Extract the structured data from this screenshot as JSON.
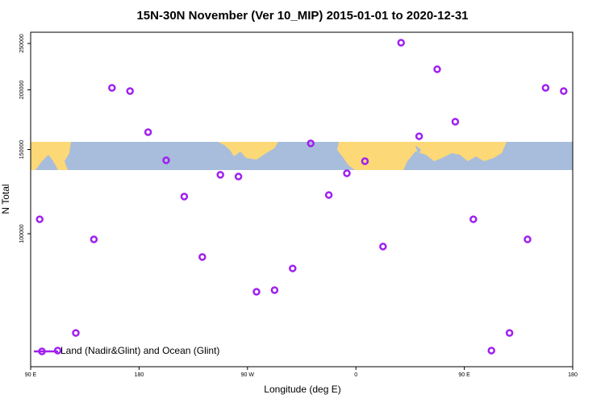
{
  "chart_data": {
    "type": "scatter",
    "title": "15N-30N November (Ver 10_MIP)   2015-01-01 to 2020-12-31",
    "x_label": "Longitude (deg E)",
    "y_label": "N Total",
    "xlim": [
      90,
      540
    ],
    "xticks": [
      {
        "value": 90,
        "label": "90 E"
      },
      {
        "value": 180,
        "label": "180"
      },
      {
        "value": 270,
        "label": "90 W"
      },
      {
        "value": 360,
        "label": "0"
      },
      {
        "value": 450,
        "label": "90 E"
      },
      {
        "value": 540,
        "label": "180"
      }
    ],
    "ylim": [
      52700,
      263900
    ],
    "y_scale": "log",
    "yticks": [
      100000,
      150000,
      200000,
      250000
    ],
    "legend_position": "bottom-left",
    "series": [
      {
        "name": "Land (Nadir&Glint) and Ocean (Glint)",
        "color": "#a020f0",
        "x": [
          97.5,
          112.5,
          127.5,
          142.5,
          157.5,
          172.5,
          187.5,
          202.5,
          217.5,
          232.5,
          247.5,
          262.5,
          277.5,
          292.5,
          307.5,
          322.5,
          337.5,
          352.5,
          367.5,
          382.5,
          397.5,
          412.5,
          427.5,
          442.5,
          457.5,
          472.5,
          487.5,
          502.5,
          517.5,
          532.5
        ],
        "values": [
          107200,
          56950,
          62000,
          97300,
          201900,
          198800,
          163100,
          142400,
          119600,
          89400,
          132800,
          131700,
          75600,
          76200,
          84600,
          154500,
          120500,
          133800,
          141800,
          94000,
          250900,
          159900,
          220800,
          171500,
          107200,
          56950,
          62000,
          97300,
          201900,
          198800
        ]
      }
    ]
  }
}
